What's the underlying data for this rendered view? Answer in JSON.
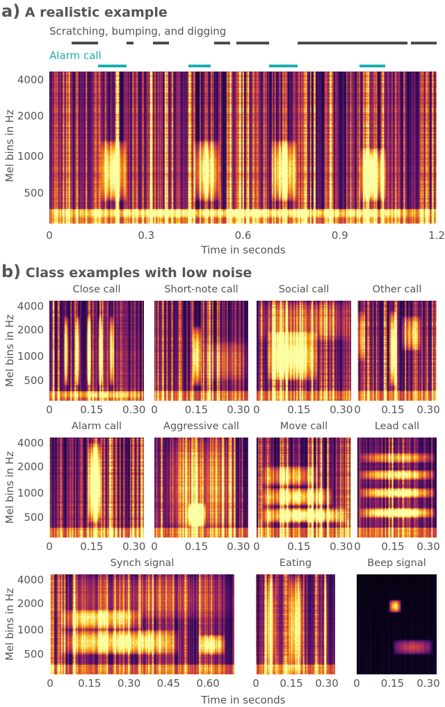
{
  "colors": {
    "scratching": "#4a4a4a",
    "alarm": "#1aaeb0",
    "text": "#555555",
    "colormap": "inferno"
  },
  "chart_data": [
    {
      "type": "heatmap",
      "panel_label": "a)",
      "title": "A realistic example",
      "xlabel": "Time in seconds",
      "ylabel": "Mel bins in Hz",
      "xlim": [
        0,
        1.2
      ],
      "xticks": [
        "0",
        "0.3",
        "0.6",
        "0.9",
        "1.2"
      ],
      "yticks": [
        "4000",
        "2000",
        "1000",
        "500"
      ],
      "annotations": [
        {
          "label": "Scratching, bumping, and digging",
          "intervals": [
            [
              0.07,
              0.15
            ],
            [
              0.24,
              0.26
            ],
            [
              0.32,
              0.37
            ],
            [
              0.51,
              0.56
            ],
            [
              0.58,
              0.68
            ],
            [
              0.77,
              1.11
            ],
            [
              1.12,
              1.2
            ]
          ]
        },
        {
          "label": "Alarm call",
          "intervals": [
            [
              0.15,
              0.24
            ],
            [
              0.43,
              0.5
            ],
            [
              0.68,
              0.77
            ],
            [
              0.96,
              1.04
            ]
          ]
        }
      ]
    },
    {
      "type": "heatmap",
      "panel_label": "b)",
      "title": "Class examples with low noise",
      "xlabel": "Time in seconds",
      "ylabel": "Mel bins in Hz",
      "yticks": [
        "4000",
        "2000",
        "1000",
        "500"
      ],
      "panels": [
        {
          "title": "Close call",
          "xticks": [
            "0",
            "0.15",
            "0.30"
          ]
        },
        {
          "title": "Short-note call",
          "xticks": [
            "0",
            "0.15",
            "0.30"
          ]
        },
        {
          "title": "Social call",
          "xticks": [
            "0",
            "0.15",
            "0.30"
          ]
        },
        {
          "title": "Other call",
          "xticks": [
            "0",
            "0.15",
            "0.30"
          ]
        },
        {
          "title": "Alarm call",
          "xticks": [
            "0",
            "0.15",
            "0.30"
          ]
        },
        {
          "title": "Aggressive call",
          "xticks": [
            "0",
            "0.15",
            "0.30"
          ]
        },
        {
          "title": "Move call",
          "xticks": [
            "0",
            "0.15",
            "0.30"
          ]
        },
        {
          "title": "Lead call",
          "xticks": [
            "0",
            "0.15",
            "0.30"
          ]
        },
        {
          "title": "Synch signal",
          "xticks": [
            "0",
            "0.15",
            "0.30",
            "0.45",
            "0.60"
          ]
        },
        {
          "title": "Eating",
          "xticks": [
            "0",
            "0.15",
            "0.30"
          ]
        },
        {
          "title": "Beep signal",
          "xticks": [
            "0",
            "0.15",
            "0.30"
          ]
        }
      ]
    }
  ]
}
